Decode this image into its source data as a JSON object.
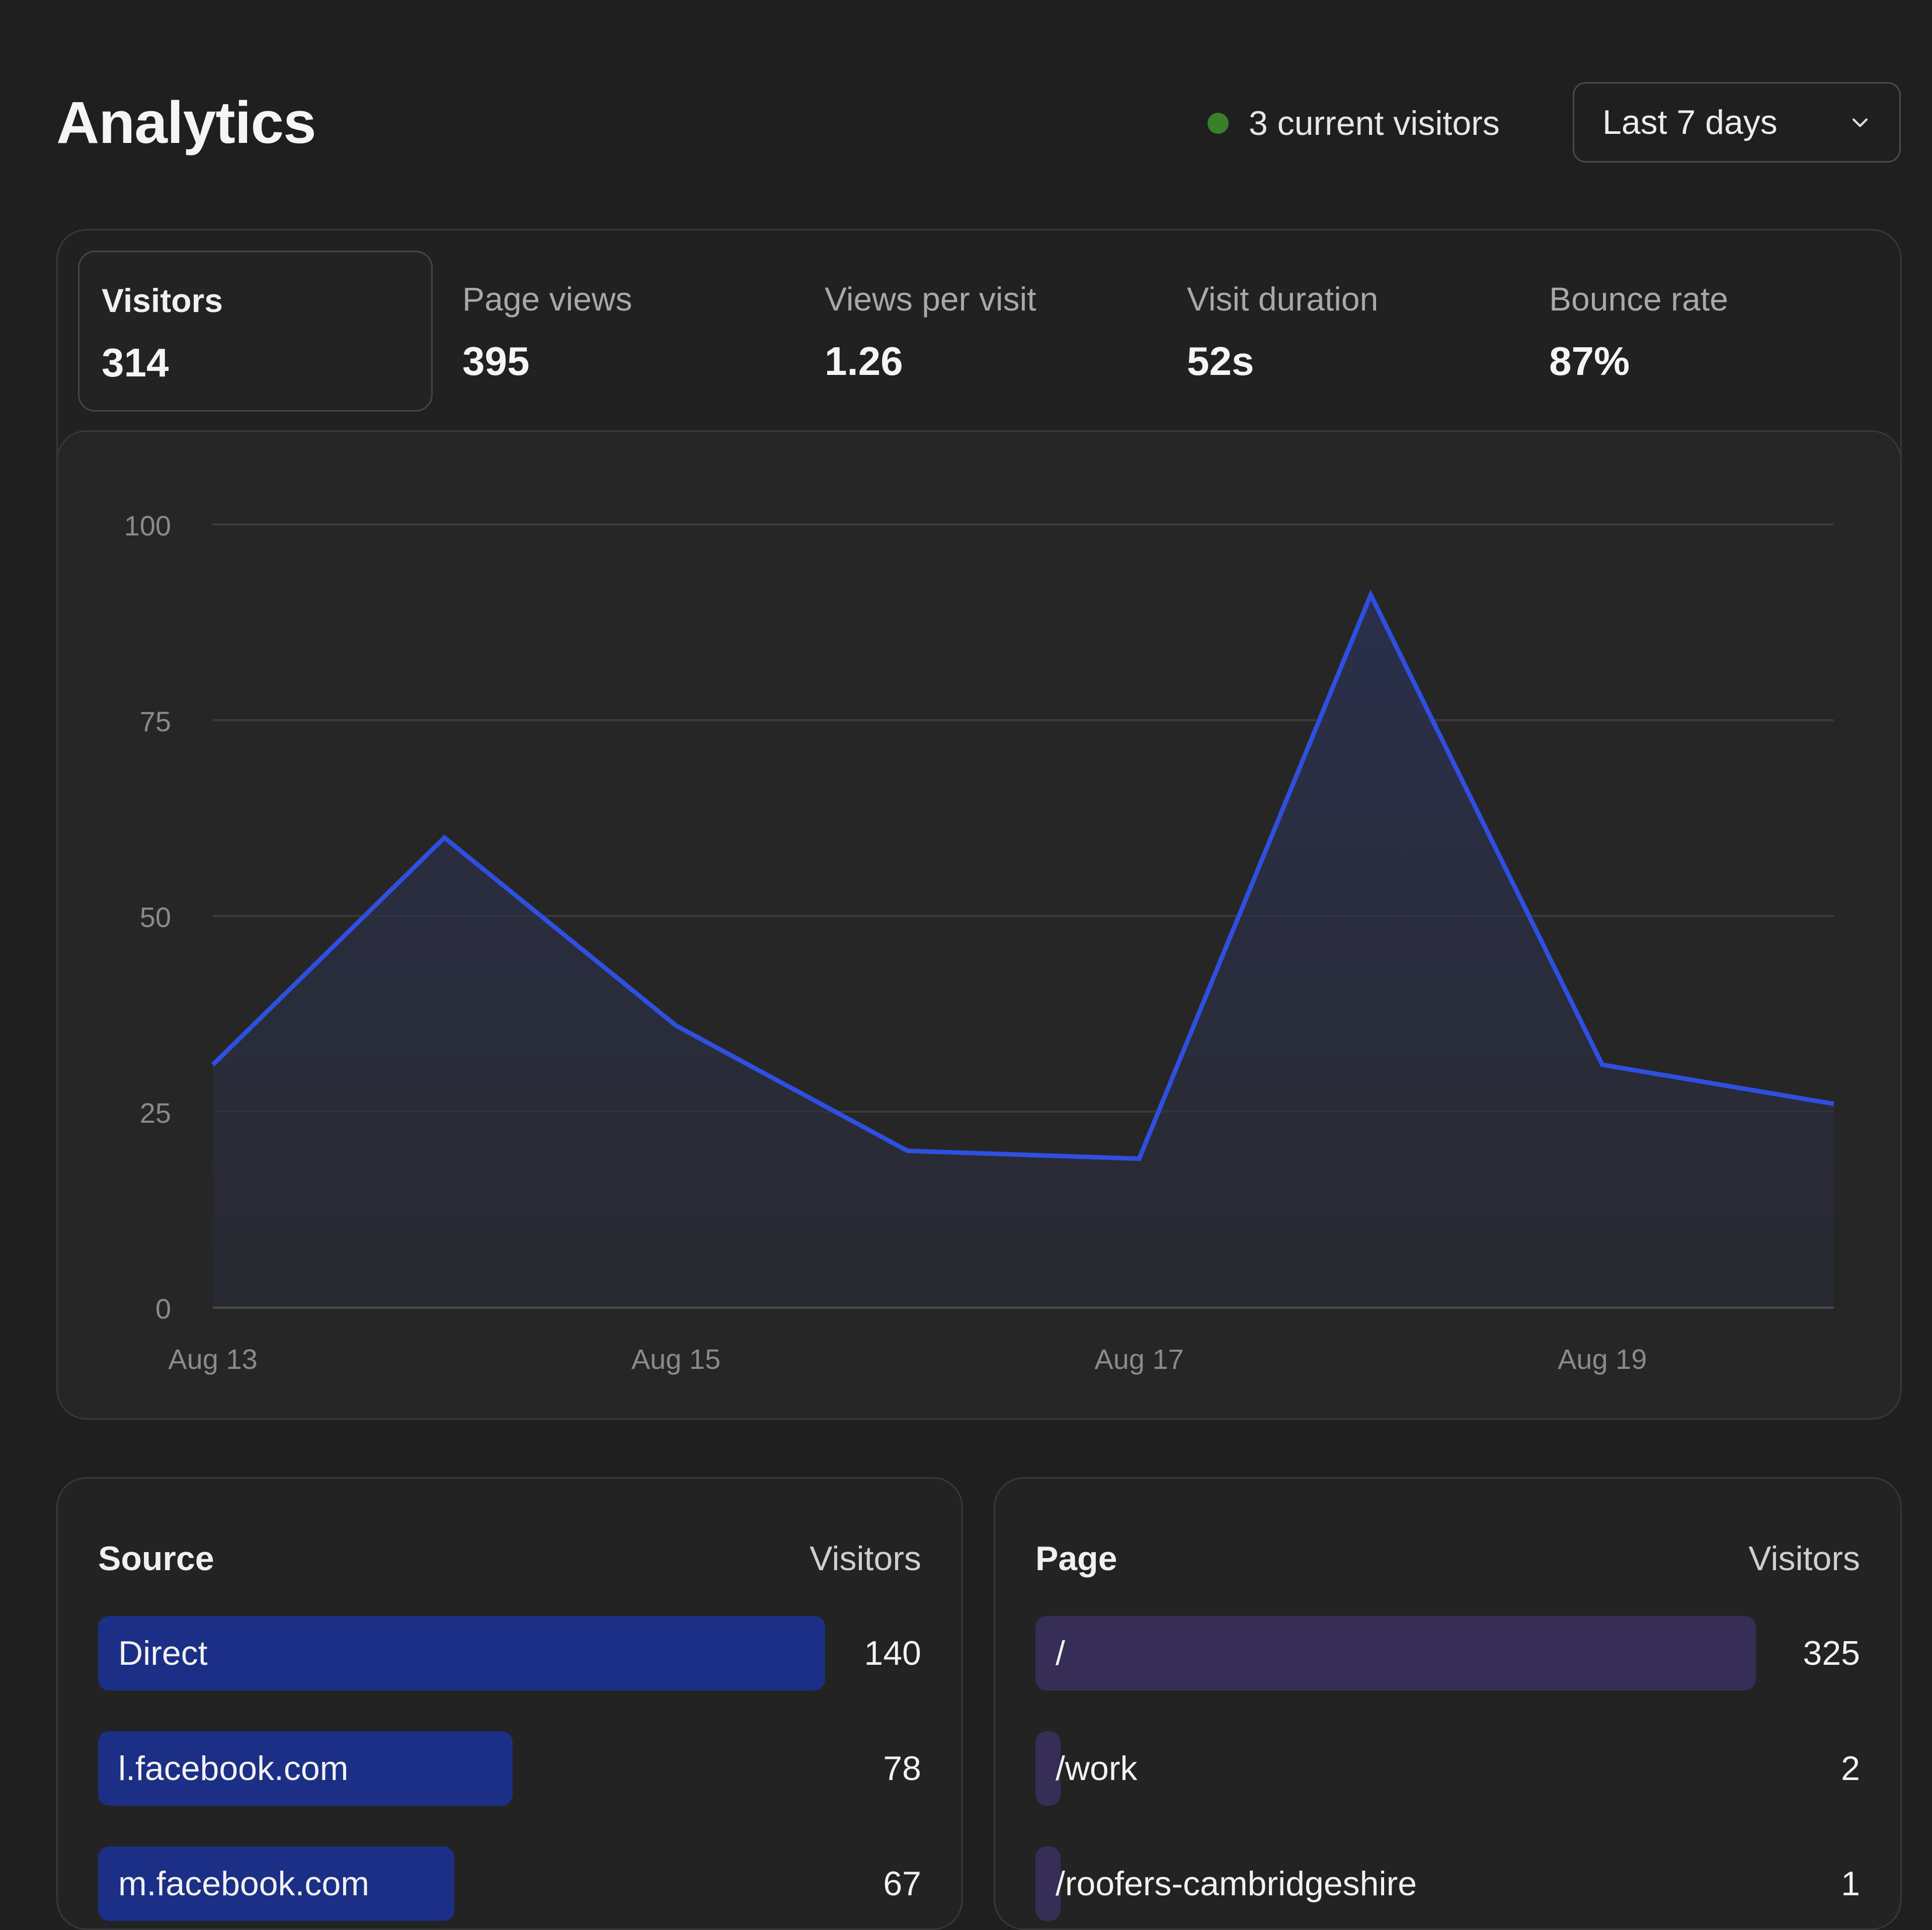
{
  "header": {
    "title": "Analytics",
    "live_visitors": "3 current visitors",
    "range": "Last 7 days"
  },
  "stats": [
    {
      "label": "Visitors",
      "value": "314",
      "active": true
    },
    {
      "label": "Page views",
      "value": "395",
      "active": false
    },
    {
      "label": "Views per visit",
      "value": "1.26",
      "active": false
    },
    {
      "label": "Visit duration",
      "value": "52s",
      "active": false
    },
    {
      "label": "Bounce rate",
      "value": "87%",
      "active": false
    }
  ],
  "colors": {
    "line": "#2f4fe0",
    "live_dot": "#3a7f2a",
    "source_bar": "#1c2f86",
    "page_bar": "#372e57"
  },
  "chart_data": {
    "type": "area",
    "x": [
      "Aug 13",
      "Aug 14",
      "Aug 15",
      "Aug 16",
      "Aug 17",
      "Aug 18",
      "Aug 19",
      "Aug 20"
    ],
    "x_tick_labels": [
      "Aug 13",
      "Aug 15",
      "Aug 17",
      "Aug 19"
    ],
    "series": [
      {
        "values": [
          31,
          60,
          36,
          20,
          19,
          91,
          31,
          26
        ]
      }
    ],
    "yticks": [
      0,
      25,
      50,
      75,
      100
    ],
    "ylim": [
      0,
      100
    ],
    "grid": true
  },
  "sources": {
    "header_left": "Source",
    "header_right": "Visitors",
    "rows": [
      {
        "label": "Direct",
        "value": "140",
        "share": 1.0
      },
      {
        "label": "l.facebook.com",
        "value": "78",
        "share": 0.57
      },
      {
        "label": "m.facebook.com",
        "value": "67",
        "share": 0.49
      }
    ]
  },
  "pages": {
    "header_left": "Page",
    "header_right": "Visitors",
    "rows": [
      {
        "label": "/",
        "value": "325",
        "share": 1.0
      },
      {
        "label": "/work",
        "value": "2",
        "share": 0.03
      },
      {
        "label": "/roofers-cambridgeshire",
        "value": "1",
        "share": 0.03
      }
    ]
  }
}
